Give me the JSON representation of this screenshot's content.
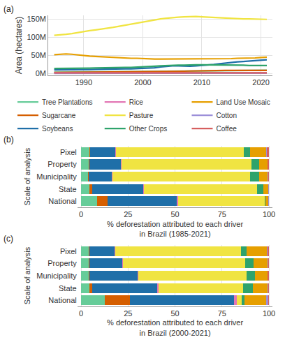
{
  "chart_data": [
    {
      "type": "line",
      "title": "(a)",
      "ylabel": "Area (hectares)",
      "grid": true,
      "legend": "bottom",
      "x": [
        1985,
        1986,
        1987,
        1988,
        1989,
        1990,
        1991,
        1992,
        1993,
        1994,
        1995,
        1996,
        1997,
        1998,
        1999,
        2000,
        2001,
        2002,
        2003,
        2004,
        2005,
        2006,
        2007,
        2008,
        2009,
        2010,
        2011,
        2012,
        2013,
        2014,
        2015,
        2016,
        2017,
        2018,
        2019,
        2020,
        2021
      ],
      "xlim": [
        1984,
        2022
      ],
      "xticks": [
        1990,
        2000,
        2010,
        2020
      ],
      "ylim": [
        -5000000.0,
        160000000.0
      ],
      "yticks": [
        {
          "value": 0,
          "label": "0M"
        },
        {
          "value": 50000000.0,
          "label": "50M"
        },
        {
          "value": 100000000.0,
          "label": "100M"
        },
        {
          "value": 150000000.0,
          "label": "150M"
        }
      ],
      "series": [
        {
          "name": "Tree Plantations",
          "color": "#66CC99",
          "values": [
            4000000.0,
            4000000.0,
            4000000.0,
            4200000.0,
            4300000.0,
            4500000.0,
            4600000.0,
            4800000.0,
            5000000.0,
            5100000.0,
            5200000.0,
            5300000.0,
            5400000.0,
            5500000.0,
            5600000.0,
            5700000.0,
            5800000.0,
            6000000.0,
            6200000.0,
            6400000.0,
            6600000.0,
            6800000.0,
            7000000.0,
            7200000.0,
            7400000.0,
            7600000.0,
            7800000.0,
            8000000.0,
            8200000.0,
            8400000.0,
            8500000.0,
            8600000.0,
            8700000.0,
            8800000.0,
            8900000.0,
            9000000.0,
            9000000.0
          ]
        },
        {
          "name": "Sugarcane",
          "color": "#D55E00",
          "values": [
            3000000.0,
            3100000.0,
            3200000.0,
            3300000.0,
            3400000.0,
            3500000.0,
            3600000.0,
            3700000.0,
            3800000.0,
            3900000.0,
            4000000.0,
            4100000.0,
            4200000.0,
            4300000.0,
            4400000.0,
            4500000.0,
            4600000.0,
            4800000.0,
            5000000.0,
            5200000.0,
            5500000.0,
            6000000.0,
            6500000.0,
            7000000.0,
            7500000.0,
            8000000.0,
            8300000.0,
            8500000.0,
            8700000.0,
            8800000.0,
            8800000.0,
            8700000.0,
            8600000.0,
            8600000.0,
            8500000.0,
            8500000.0,
            8500000.0
          ]
        },
        {
          "name": "Soybeans",
          "color": "#1F6FA8",
          "values": [
            10000000.0,
            10000000.0,
            10500000.0,
            11000000.0,
            11000000.0,
            11000000.0,
            11000000.0,
            11500000.0,
            12000000.0,
            12000000.0,
            12000000.0,
            12500000.0,
            13000000.0,
            13000000.0,
            13500000.0,
            14000000.0,
            15000000.0,
            16000000.0,
            18000000.0,
            20000000.0,
            21000000.0,
            21000000.0,
            20000000.0,
            20000000.0,
            21000000.0,
            22000000.0,
            23000000.0,
            25000000.0,
            27000000.0,
            29000000.0,
            31000000.0,
            32000000.0,
            33000000.0,
            34000000.0,
            36000000.0,
            37000000.0,
            38000000.0
          ]
        },
        {
          "name": "Rice",
          "color": "#E377B5",
          "values": [
            2500000.0,
            2500000.0,
            2500000.0,
            2400000.0,
            2400000.0,
            2300000.0,
            2300000.0,
            2200000.0,
            2200000.0,
            2100000.0,
            2100000.0,
            2000000.0,
            2000000.0,
            2000000.0,
            1900000.0,
            1900000.0,
            1900000.0,
            1800000.0,
            1800000.0,
            1800000.0,
            1700000.0,
            1700000.0,
            1600000.0,
            1600000.0,
            1500000.0,
            1500000.0,
            1500000.0,
            1400000.0,
            1400000.0,
            1400000.0,
            1300000.0,
            1300000.0,
            1300000.0,
            1300000.0,
            1300000.0,
            1300000.0,
            1300000.0
          ]
        },
        {
          "name": "Pasture",
          "color": "#F0E442",
          "values": [
            105000000.0,
            106000000.0,
            108000000.0,
            110000000.0,
            113000000.0,
            116000000.0,
            118000000.0,
            120000000.0,
            122000000.0,
            124000000.0,
            127000000.0,
            130000000.0,
            133000000.0,
            136000000.0,
            139000000.0,
            142000000.0,
            144000000.0,
            147000000.0,
            150000000.0,
            152000000.0,
            154000000.0,
            155000000.0,
            156000000.0,
            157000000.0,
            157000000.0,
            156000000.0,
            155000000.0,
            154000000.0,
            153000000.0,
            152000000.0,
            151000000.0,
            151000000.0,
            150000000.0,
            150000000.0,
            150000000.0,
            149000000.0,
            149000000.0
          ]
        },
        {
          "name": "Other Crops",
          "color": "#2EA36B",
          "values": [
            14000000.0,
            14000000.0,
            14500000.0,
            15000000.0,
            15000000.0,
            15000000.0,
            15000000.0,
            15500000.0,
            16000000.0,
            16000000.0,
            16000000.0,
            16500000.0,
            17000000.0,
            17000000.0,
            17500000.0,
            18000000.0,
            19000000.0,
            20000000.0,
            21000000.0,
            22000000.0,
            23000000.0,
            23000000.0,
            23000000.0,
            24000000.0,
            24000000.0,
            24000000.0,
            24000000.0,
            24000000.0,
            23000000.0,
            23000000.0,
            23000000.0,
            23000000.0,
            23000000.0,
            22000000.0,
            22000000.0,
            22000000.0,
            22000000.0
          ]
        },
        {
          "name": "Land Use Mosaic",
          "color": "#E69F00",
          "values": [
            52000000.0,
            53000000.0,
            54000000.0,
            53000000.0,
            51000000.0,
            50000000.0,
            48000000.0,
            47000000.0,
            46000000.0,
            45000000.0,
            44000000.0,
            43000000.0,
            43000000.0,
            42000000.0,
            42000000.0,
            41000000.0,
            41000000.0,
            40000000.0,
            40000000.0,
            40000000.0,
            40000000.0,
            40000000.0,
            40000000.0,
            40000000.0,
            40000000.0,
            40000000.0,
            40000000.0,
            40000000.0,
            41000000.0,
            41000000.0,
            41000000.0,
            42000000.0,
            42000000.0,
            43000000.0,
            43000000.0,
            44000000.0,
            45000000.0
          ]
        },
        {
          "name": "Cotton",
          "color": "#9C8FD9",
          "values": [
            500000.0,
            500000.0,
            500000.0,
            500000.0,
            500000.0,
            500000.0,
            500000.0,
            500000.0,
            500000.0,
            500000.0,
            500000.0,
            500000.0,
            600000.0,
            600000.0,
            600000.0,
            600000.0,
            700000.0,
            700000.0,
            700000.0,
            800000.0,
            900000.0,
            1000000.0,
            1000000.0,
            1000000.0,
            1000000.0,
            1000000.0,
            1000000.0,
            1100000.0,
            1100000.0,
            1100000.0,
            1200000.0,
            1200000.0,
            1300000.0,
            1400000.0,
            1500000.0,
            1600000.0,
            1600000.0
          ]
        },
        {
          "name": "Coffee",
          "color": "#D65F5F",
          "values": [
            2000000.0,
            2000000.0,
            2000000.0,
            2000000.0,
            2000000.0,
            2000000.0,
            2000000.0,
            2000000.0,
            2000000.0,
            2000000.0,
            2000000.0,
            2000000.0,
            2000000.0,
            2000000.0,
            2000000.0,
            2000000.0,
            2000000.0,
            2000000.0,
            1900000.0,
            1900000.0,
            1900000.0,
            1900000.0,
            1900000.0,
            1900000.0,
            1800000.0,
            1800000.0,
            1800000.0,
            1800000.0,
            1800000.0,
            1800000.0,
            1800000.0,
            1800000.0,
            1800000.0,
            1800000.0,
            1800000.0,
            1800000.0,
            1800000.0
          ]
        }
      ]
    },
    {
      "type": "bar",
      "title": "(b)",
      "orientation": "horizontal",
      "stacked": true,
      "grid": true,
      "ylabel": "Scale of analysis",
      "xlabel": "% deforestation attributed to each driver\nin Brazil (1985-2021)",
      "categories": [
        "Pixel",
        "Property",
        "Municipality",
        "State",
        "National"
      ],
      "xlim": [
        -2,
        102
      ],
      "xticks": [
        0,
        25,
        50,
        75,
        100
      ],
      "series": [
        {
          "name": "Tree Plantations",
          "color": "#66CC99",
          "values": [
            4.5,
            4,
            3.5,
            4.5,
            8.5
          ]
        },
        {
          "name": "Sugarcane",
          "color": "#D55E00",
          "values": [
            0.3,
            0.3,
            0.5,
            1.5,
            5.5
          ]
        },
        {
          "name": "Soybeans",
          "color": "#1F6FA8",
          "values": [
            13.5,
            17,
            12.5,
            27,
            37
          ]
        },
        {
          "name": "Rice",
          "color": "#E377B5",
          "values": [
            0.2,
            0.3,
            0.3,
            0.5,
            0.8
          ]
        },
        {
          "name": "Pasture",
          "color": "#F0E442",
          "values": [
            68,
            69,
            73,
            60,
            46
          ]
        },
        {
          "name": "Other Crops",
          "color": "#2EA36B",
          "values": [
            3.5,
            4,
            5,
            3.5,
            0.5
          ]
        },
        {
          "name": "Land Use Mosaic",
          "color": "#E69F00",
          "values": [
            8.5,
            4.5,
            4.5,
            2.5,
            1.2
          ]
        },
        {
          "name": "Cotton",
          "color": "#9C8FD9",
          "values": [
            0.2,
            0.2,
            0.2,
            0.3,
            0.3
          ]
        },
        {
          "name": "Coffee",
          "color": "#D65F5F",
          "values": [
            1.3,
            0.7,
            0.5,
            0.2,
            0.2
          ]
        }
      ]
    },
    {
      "type": "bar",
      "title": "(c)",
      "orientation": "horizontal",
      "stacked": true,
      "grid": true,
      "ylabel": "Scale of analysis",
      "xlabel": "% deforestation attributed to each driver\nin Brazil (2000-2021)",
      "categories": [
        "Pixel",
        "Property",
        "Municipality",
        "State",
        "National"
      ],
      "xlim": [
        -2,
        102
      ],
      "xticks": [
        0,
        25,
        50,
        75,
        100
      ],
      "series": [
        {
          "name": "Tree Plantations",
          "color": "#66CC99",
          "values": [
            4,
            4,
            4,
            4.5,
            12.5
          ]
        },
        {
          "name": "Sugarcane",
          "color": "#D55E00",
          "values": [
            0.3,
            0.3,
            0.5,
            1.5,
            13.5
          ]
        },
        {
          "name": "Soybeans",
          "color": "#1F6FA8",
          "values": [
            13.5,
            17.5,
            25.5,
            34.5,
            55.5
          ]
        },
        {
          "name": "Rice",
          "color": "#E377B5",
          "values": [
            0.2,
            0.4,
            0.6,
            0.8,
            1.5
          ]
        },
        {
          "name": "Pasture",
          "color": "#F0E442",
          "values": [
            67,
            65,
            57.5,
            45,
            2.5
          ]
        },
        {
          "name": "Other Crops",
          "color": "#2EA36B",
          "values": [
            3,
            4.5,
            4.5,
            5,
            1.5
          ]
        },
        {
          "name": "Land Use Mosaic",
          "color": "#E69F00",
          "values": [
            11,
            7.5,
            6.5,
            8,
            11.5
          ]
        },
        {
          "name": "Cotton",
          "color": "#9C8FD9",
          "values": [
            0.3,
            0.3,
            0.3,
            0.4,
            1
          ]
        },
        {
          "name": "Coffee",
          "color": "#D65F5F",
          "values": [
            0.7,
            0.5,
            0.6,
            0.3,
            0.5
          ]
        }
      ]
    }
  ]
}
